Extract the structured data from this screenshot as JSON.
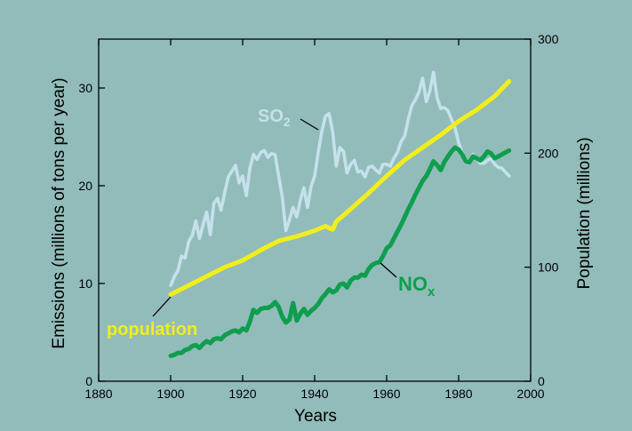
{
  "colors": {
    "background": "#92bcba",
    "so2": "#c4e1ec",
    "nox": "#0e9e4e",
    "population": "#f2ee1a",
    "axis": "#000000"
  },
  "chart_data": {
    "type": "line",
    "xlabel": "Years",
    "ylabel_left": "Emissions (millions of tons per year)",
    "ylabel_right": "Population (millions)",
    "xlim": [
      1880,
      2000
    ],
    "ylim_left": [
      0,
      35
    ],
    "ylim_right": [
      0,
      300
    ],
    "x_ticks": [
      1880,
      1900,
      1920,
      1940,
      1960,
      1980,
      2000
    ],
    "y_ticks_left": [
      0,
      10,
      20,
      30
    ],
    "y_ticks_right": [
      0,
      100,
      200,
      300
    ],
    "grid": false,
    "series": [
      {
        "name": "SO",
        "name_subscript": "2",
        "axis": "left",
        "points": [
          [
            1900,
            9.8
          ],
          [
            1901,
            10.7
          ],
          [
            1902,
            11.3
          ],
          [
            1903,
            12.8
          ],
          [
            1904,
            12.6
          ],
          [
            1905,
            14.3
          ],
          [
            1906,
            14.9
          ],
          [
            1907,
            16.4
          ],
          [
            1908,
            14.6
          ],
          [
            1909,
            16.0
          ],
          [
            1910,
            17.3
          ],
          [
            1911,
            15.0
          ],
          [
            1912,
            18.2
          ],
          [
            1913,
            18.7
          ],
          [
            1914,
            17.5
          ],
          [
            1915,
            19.3
          ],
          [
            1916,
            20.9
          ],
          [
            1917,
            21.5
          ],
          [
            1918,
            22.1
          ],
          [
            1919,
            20.3
          ],
          [
            1920,
            21.0
          ],
          [
            1921,
            19.0
          ],
          [
            1922,
            21.8
          ],
          [
            1923,
            23.2
          ],
          [
            1924,
            22.7
          ],
          [
            1925,
            23.4
          ],
          [
            1926,
            23.6
          ],
          [
            1927,
            22.9
          ],
          [
            1928,
            23.3
          ],
          [
            1929,
            23.2
          ],
          [
            1930,
            21.0
          ],
          [
            1931,
            18.9
          ],
          [
            1932,
            15.4
          ],
          [
            1933,
            16.5
          ],
          [
            1934,
            17.8
          ],
          [
            1935,
            16.8
          ],
          [
            1936,
            18.5
          ],
          [
            1937,
            19.8
          ],
          [
            1938,
            17.8
          ],
          [
            1939,
            19.9
          ],
          [
            1940,
            21.0
          ],
          [
            1941,
            23.4
          ],
          [
            1942,
            25.6
          ],
          [
            1943,
            27.1
          ],
          [
            1944,
            27.4
          ],
          [
            1945,
            25.5
          ],
          [
            1946,
            22.0
          ],
          [
            1947,
            23.9
          ],
          [
            1948,
            23.5
          ],
          [
            1949,
            21.3
          ],
          [
            1950,
            22.2
          ],
          [
            1951,
            22.6
          ],
          [
            1952,
            21.4
          ],
          [
            1953,
            21.5
          ],
          [
            1954,
            20.9
          ],
          [
            1955,
            21.9
          ],
          [
            1956,
            22.0
          ],
          [
            1957,
            21.6
          ],
          [
            1958,
            21.3
          ],
          [
            1959,
            22.2
          ],
          [
            1960,
            22.2
          ],
          [
            1961,
            22.0
          ],
          [
            1962,
            22.8
          ],
          [
            1963,
            23.4
          ],
          [
            1964,
            24.5
          ],
          [
            1965,
            25.1
          ],
          [
            1966,
            26.8
          ],
          [
            1967,
            28.2
          ],
          [
            1968,
            28.8
          ],
          [
            1969,
            29.6
          ],
          [
            1970,
            31.0
          ],
          [
            1971,
            28.6
          ],
          [
            1972,
            29.7
          ],
          [
            1973,
            31.6
          ],
          [
            1974,
            29.0
          ],
          [
            1975,
            27.9
          ],
          [
            1976,
            28.0
          ],
          [
            1977,
            27.7
          ],
          [
            1978,
            26.8
          ],
          [
            1979,
            25.9
          ],
          [
            1980,
            24.4
          ],
          [
            1981,
            23.4
          ],
          [
            1982,
            22.7
          ],
          [
            1983,
            22.5
          ],
          [
            1984,
            23.2
          ],
          [
            1985,
            22.7
          ],
          [
            1986,
            22.3
          ],
          [
            1987,
            22.3
          ],
          [
            1988,
            22.6
          ],
          [
            1989,
            22.8
          ],
          [
            1990,
            22.2
          ],
          [
            1991,
            21.9
          ],
          [
            1992,
            21.8
          ],
          [
            1993,
            21.4
          ],
          [
            1994,
            21.0
          ]
        ]
      },
      {
        "name": "NO",
        "name_subscript": "x",
        "axis": "left",
        "points": [
          [
            1900,
            2.6
          ],
          [
            1901,
            2.7
          ],
          [
            1902,
            2.9
          ],
          [
            1903,
            2.9
          ],
          [
            1904,
            3.2
          ],
          [
            1905,
            3.3
          ],
          [
            1906,
            3.6
          ],
          [
            1907,
            3.7
          ],
          [
            1908,
            3.4
          ],
          [
            1909,
            3.8
          ],
          [
            1910,
            4.1
          ],
          [
            1911,
            3.9
          ],
          [
            1912,
            4.3
          ],
          [
            1913,
            4.4
          ],
          [
            1914,
            4.3
          ],
          [
            1915,
            4.7
          ],
          [
            1916,
            4.9
          ],
          [
            1917,
            5.1
          ],
          [
            1918,
            5.2
          ],
          [
            1919,
            5.0
          ],
          [
            1920,
            5.4
          ],
          [
            1921,
            5.2
          ],
          [
            1922,
            6.1
          ],
          [
            1923,
            7.3
          ],
          [
            1924,
            7.0
          ],
          [
            1925,
            7.4
          ],
          [
            1926,
            7.5
          ],
          [
            1927,
            7.5
          ],
          [
            1928,
            7.7
          ],
          [
            1929,
            8.1
          ],
          [
            1930,
            7.6
          ],
          [
            1931,
            6.6
          ],
          [
            1932,
            6.0
          ],
          [
            1933,
            6.3
          ],
          [
            1934,
            8.0
          ],
          [
            1935,
            6.2
          ],
          [
            1936,
            6.9
          ],
          [
            1937,
            7.4
          ],
          [
            1938,
            6.8
          ],
          [
            1939,
            7.2
          ],
          [
            1940,
            7.5
          ],
          [
            1941,
            7.9
          ],
          [
            1942,
            8.5
          ],
          [
            1943,
            8.9
          ],
          [
            1944,
            9.4
          ],
          [
            1945,
            9.1
          ],
          [
            1946,
            9.3
          ],
          [
            1947,
            9.9
          ],
          [
            1948,
            10.0
          ],
          [
            1949,
            9.6
          ],
          [
            1950,
            10.3
          ],
          [
            1951,
            10.6
          ],
          [
            1952,
            10.6
          ],
          [
            1953,
            10.9
          ],
          [
            1954,
            10.8
          ],
          [
            1955,
            11.5
          ],
          [
            1956,
            11.9
          ],
          [
            1957,
            12.1
          ],
          [
            1958,
            12.2
          ],
          [
            1959,
            12.8
          ],
          [
            1960,
            13.6
          ],
          [
            1961,
            13.9
          ],
          [
            1962,
            14.6
          ],
          [
            1963,
            15.3
          ],
          [
            1964,
            16.0
          ],
          [
            1965,
            16.8
          ],
          [
            1966,
            17.6
          ],
          [
            1967,
            18.3
          ],
          [
            1968,
            19.1
          ],
          [
            1969,
            19.8
          ],
          [
            1970,
            20.5
          ],
          [
            1971,
            21.0
          ],
          [
            1972,
            21.7
          ],
          [
            1973,
            22.5
          ],
          [
            1974,
            22.1
          ],
          [
            1975,
            21.6
          ],
          [
            1976,
            22.4
          ],
          [
            1977,
            23.0
          ],
          [
            1978,
            23.5
          ],
          [
            1979,
            23.9
          ],
          [
            1980,
            23.7
          ],
          [
            1981,
            23.2
          ],
          [
            1982,
            22.5
          ],
          [
            1983,
            22.4
          ],
          [
            1984,
            23.0
          ],
          [
            1985,
            22.8
          ],
          [
            1986,
            22.6
          ],
          [
            1987,
            23.0
          ],
          [
            1988,
            23.5
          ],
          [
            1989,
            23.3
          ],
          [
            1990,
            22.8
          ],
          [
            1991,
            23.0
          ],
          [
            1992,
            23.2
          ],
          [
            1993,
            23.4
          ],
          [
            1994,
            23.6
          ]
        ]
      },
      {
        "name": "population",
        "axis": "right",
        "points": [
          [
            1900,
            76
          ],
          [
            1905,
            84
          ],
          [
            1910,
            92
          ],
          [
            1915,
            100
          ],
          [
            1920,
            106
          ],
          [
            1925,
            115
          ],
          [
            1930,
            123
          ],
          [
            1935,
            127
          ],
          [
            1940,
            132
          ],
          [
            1943,
            136
          ],
          [
            1945,
            133
          ],
          [
            1946,
            140
          ],
          [
            1950,
            151
          ],
          [
            1955,
            165
          ],
          [
            1960,
            180
          ],
          [
            1965,
            194
          ],
          [
            1970,
            205
          ],
          [
            1975,
            216
          ],
          [
            1980,
            228
          ],
          [
            1985,
            238
          ],
          [
            1990,
            250
          ],
          [
            1994,
            263
          ]
        ]
      }
    ]
  }
}
